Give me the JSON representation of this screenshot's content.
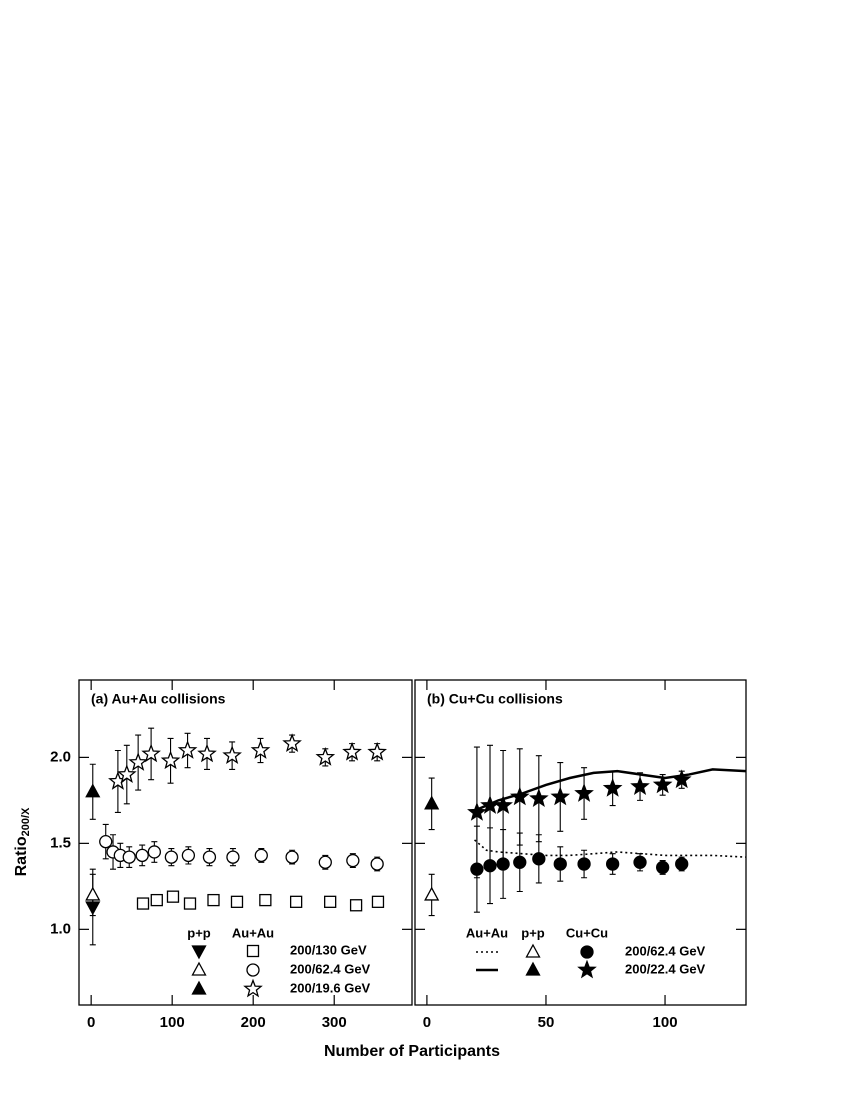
{
  "figure": {
    "xlabel": "Number of Participants",
    "ylabel": "Ratio",
    "ylabel_sub": "200/X"
  },
  "chart_data": [
    {
      "type": "scatter",
      "title": "(a) Au+Au collisions",
      "color": "#000000",
      "xlim": [
        -15,
        396
      ],
      "ylim": [
        0.56,
        2.45
      ],
      "xticks": [
        0,
        100,
        200,
        300
      ],
      "yticks": [
        {
          "value": 1,
          "label": "1.0"
        },
        1.5,
        {
          "value": 2,
          "label": "2.0"
        }
      ],
      "series_groups": [
        {
          "name": "p+p",
          "series": [
            {
              "name": "200/130 GeV",
              "marker": "triangle-down",
              "filled": true,
              "x": [
                2
              ],
              "values": [
                1.13
              ],
              "errors": [
                0.22
              ]
            },
            {
              "name": "200/62.4 GeV",
              "marker": "triangle-up",
              "filled": false,
              "x": [
                2
              ],
              "values": [
                1.2
              ],
              "errors": [
                0.12
              ]
            },
            {
              "name": "200/19.6 GeV",
              "marker": "triangle-up",
              "filled": true,
              "x": [
                2
              ],
              "values": [
                1.8
              ],
              "errors": [
                0.16
              ]
            }
          ]
        },
        {
          "name": "Au+Au",
          "series": [
            {
              "name": "200/130 GeV",
              "marker": "square",
              "filled": false,
              "x": [
                64,
                81,
                101,
                122,
                151,
                180,
                215,
                253,
                295,
                327,
                354
              ],
              "values": [
                1.15,
                1.17,
                1.19,
                1.15,
                1.17,
                1.16,
                1.17,
                1.16,
                1.16,
                1.14,
                1.16
              ],
              "errors": [
                0.01,
                0.01,
                0.01,
                0.01,
                0.01,
                0.01,
                0.01,
                0.01,
                0.01,
                0.01,
                0.01
              ]
            },
            {
              "name": "200/62.4 GeV",
              "marker": "circle",
              "filled": false,
              "x": [
                18,
                27,
                36,
                47,
                63,
                78,
                99,
                120,
                146,
                175,
                210,
                248,
                289,
                323,
                353
              ],
              "values": [
                1.51,
                1.45,
                1.43,
                1.42,
                1.43,
                1.45,
                1.42,
                1.43,
                1.42,
                1.42,
                1.43,
                1.42,
                1.39,
                1.4,
                1.38
              ],
              "errors": [
                0.1,
                0.1,
                0.07,
                0.06,
                0.06,
                0.06,
                0.05,
                0.05,
                0.05,
                0.05,
                0.04,
                0.04,
                0.04,
                0.04,
                0.04
              ]
            },
            {
              "name": "200/19.6 GeV",
              "marker": "star",
              "filled": false,
              "x": [
                33,
                44,
                58,
                74,
                98,
                119,
                143,
                174,
                209,
                248,
                289,
                322,
                353
              ],
              "values": [
                1.86,
                1.9,
                1.97,
                2.02,
                1.98,
                2.04,
                2.02,
                2.01,
                2.04,
                2.08,
                2.0,
                2.03,
                2.03
              ],
              "errors": [
                0.18,
                0.17,
                0.16,
                0.15,
                0.13,
                0.1,
                0.09,
                0.08,
                0.07,
                0.05,
                0.05,
                0.05,
                0.05
              ]
            }
          ]
        }
      ]
    },
    {
      "type": "scatter",
      "title": "(b) Cu+Cu collisions",
      "color": "#000000",
      "xlim": [
        -5,
        134
      ],
      "ylim": [
        0.56,
        2.45
      ],
      "xticks": [
        0,
        50,
        100
      ],
      "yticks": [
        1,
        1.5,
        2
      ],
      "series_groups": [
        {
          "name": "Au+Au",
          "series": [
            {
              "name": "200/62.4 GeV",
              "style": "dotted",
              "x": [
                20,
                25,
                30,
                40,
                50,
                60,
                70,
                80,
                90,
                100,
                110,
                120,
                134
              ],
              "values": [
                1.52,
                1.46,
                1.45,
                1.44,
                1.43,
                1.43,
                1.44,
                1.45,
                1.44,
                1.43,
                1.43,
                1.43,
                1.42
              ]
            },
            {
              "name": "200/22.4 GeV",
              "style": "solid",
              "x": [
                20,
                30,
                40,
                50,
                60,
                70,
                80,
                90,
                100,
                110,
                120,
                134
              ],
              "values": [
                1.69,
                1.75,
                1.79,
                1.84,
                1.88,
                1.91,
                1.92,
                1.9,
                1.88,
                1.9,
                1.93,
                1.92
              ]
            }
          ]
        },
        {
          "name": "p+p",
          "series": [
            {
              "name": "200/62.4 GeV",
              "marker": "triangle-up",
              "filled": false,
              "x": [
                2
              ],
              "values": [
                1.2
              ],
              "errors": [
                0.12
              ]
            },
            {
              "name": "200/22.4 GeV",
              "marker": "triangle-up",
              "filled": true,
              "x": [
                2
              ],
              "values": [
                1.73
              ],
              "errors": [
                0.15
              ]
            }
          ]
        },
        {
          "name": "Cu+Cu",
          "series": [
            {
              "name": "200/62.4 GeV",
              "marker": "circle",
              "filled": true,
              "x": [
                21,
                26.5,
                32,
                39,
                47,
                56,
                66,
                78,
                89.5,
                99,
                107
              ],
              "values": [
                1.35,
                1.37,
                1.38,
                1.39,
                1.41,
                1.38,
                1.38,
                1.38,
                1.39,
                1.36,
                1.38
              ],
              "errors": [
                0.25,
                0.22,
                0.2,
                0.17,
                0.14,
                0.1,
                0.08,
                0.06,
                0.05,
                0.04,
                0.04
              ]
            },
            {
              "name": "200/22.4 GeV",
              "marker": "star",
              "filled": true,
              "x": [
                21,
                26.5,
                32,
                39,
                47,
                56,
                66,
                78,
                89.5,
                99,
                107
              ],
              "values": [
                1.68,
                1.72,
                1.72,
                1.77,
                1.76,
                1.77,
                1.79,
                1.82,
                1.83,
                1.84,
                1.87
              ],
              "errors": [
                0.38,
                0.35,
                0.32,
                0.28,
                0.25,
                0.2,
                0.15,
                0.1,
                0.08,
                0.06,
                0.05
              ]
            }
          ]
        }
      ]
    }
  ]
}
